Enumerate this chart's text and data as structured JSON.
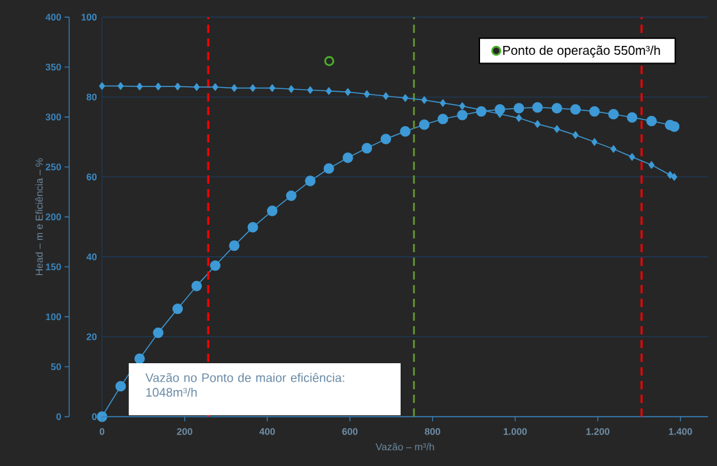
{
  "chart_data": {
    "type": "line",
    "xlabel": "Vazão – m³/h",
    "ylabel": "Head – m e Eficiência – %",
    "annotations": [
      "Vazão no Ponto de maior eficiência: 1048m³/h"
    ],
    "x": [
      0,
      45,
      91,
      136,
      183,
      229,
      274,
      320,
      365,
      412,
      458,
      504,
      549,
      595,
      641,
      687,
      734,
      780,
      825,
      872,
      918,
      963,
      1009,
      1054,
      1101,
      1146,
      1192,
      1238,
      1283,
      1330,
      1375,
      1385
    ],
    "series": [
      {
        "color": "#3d9ad6",
        "marker": "diamond",
        "values": [
          331,
          331,
          330.5,
          330.5,
          330.5,
          330,
          330,
          329,
          329,
          329,
          328,
          327,
          326,
          325,
          323,
          321,
          319,
          317,
          314,
          311,
          307,
          303,
          299,
          293,
          288,
          282,
          275,
          268,
          260,
          252,
          242,
          240
        ]
      },
      {
        "color": "#3d9ad6",
        "marker": "circle",
        "axis": "y2",
        "values": [
          0,
          7.6,
          14.5,
          21,
          27,
          32.7,
          37.8,
          42.8,
          47.4,
          51.5,
          55.3,
          59,
          62.1,
          64.8,
          67.2,
          69.5,
          71.4,
          73.1,
          74.5,
          75.5,
          76.4,
          76.9,
          77.2,
          77.4,
          77.2,
          76.9,
          76.4,
          75.7,
          74.9,
          74,
          73,
          72.6
        ]
      },
      {
        "name": "Ponto de operação 550m³/h",
        "type": "scatter",
        "marker": "circle",
        "color": "#4caf2a",
        "x": [
          550
        ],
        "values": [
          356
        ]
      }
    ],
    "xlim": [
      0,
      1467
    ],
    "xticks": [
      0,
      200,
      400,
      600,
      800,
      {
        "value": 1000,
        "label": "1.000"
      },
      {
        "value": 1200,
        "label": "1.200"
      },
      {
        "value": 1400,
        "label": "1.400"
      }
    ],
    "ylim": [
      0,
      400
    ],
    "yticks": [
      0,
      50,
      100,
      150,
      200,
      250,
      300,
      350,
      400
    ],
    "y2lim": [
      0,
      100
    ],
    "y2ticks": [
      0,
      20,
      40,
      60,
      80,
      100
    ],
    "ref_lines": [
      {
        "axis": "x",
        "value": 257,
        "color": "#ff0000",
        "line_style": "dashed"
      },
      {
        "axis": "x",
        "value": 755,
        "color": "#5b8a2f",
        "line_style": "dashed"
      },
      {
        "axis": "x",
        "value": 1306,
        "color": "#ff0000",
        "line_style": "dashed"
      }
    ],
    "grid": true,
    "legend": "top right"
  }
}
